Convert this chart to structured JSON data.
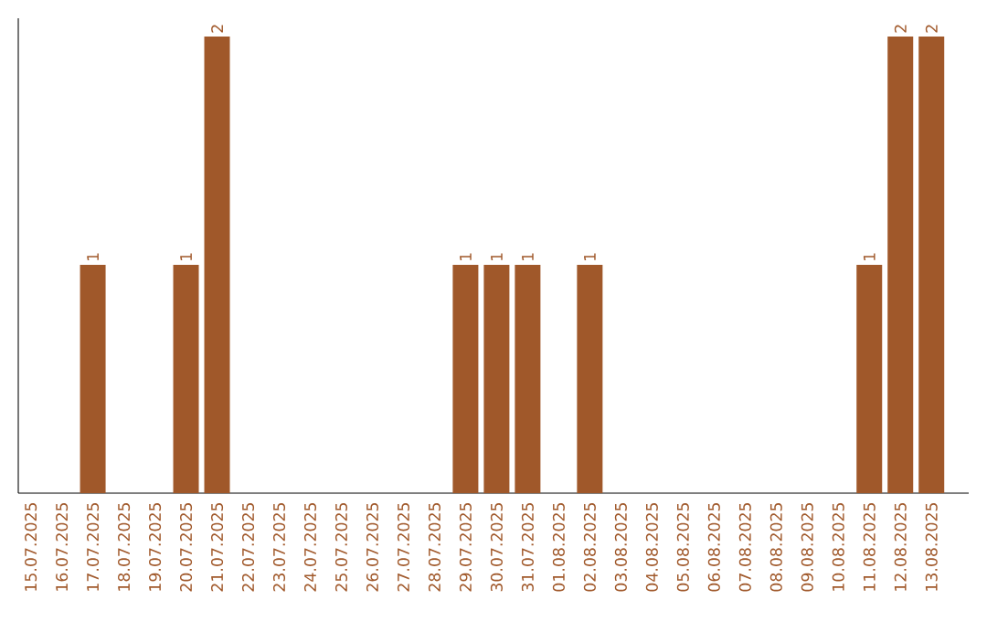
{
  "chart_data": {
    "type": "bar",
    "categories": [
      "15.07.2025",
      "16.07.2025",
      "17.07.2025",
      "18.07.2025",
      "19.07.2025",
      "20.07.2025",
      "21.07.2025",
      "22.07.2025",
      "23.07.2025",
      "24.07.2025",
      "25.07.2025",
      "26.07.2025",
      "27.07.2025",
      "28.07.2025",
      "29.07.2025",
      "30.07.2025",
      "31.07.2025",
      "01.08.2025",
      "02.08.2025",
      "03.08.2025",
      "04.08.2025",
      "05.08.2025",
      "06.08.2025",
      "07.08.2025",
      "08.08.2025",
      "09.08.2025",
      "10.08.2025",
      "11.08.2025",
      "12.08.2025",
      "13.08.2025"
    ],
    "values": [
      0,
      0,
      1,
      0,
      0,
      1,
      2,
      0,
      0,
      0,
      0,
      0,
      0,
      0,
      1,
      1,
      1,
      0,
      1,
      0,
      0,
      0,
      0,
      0,
      0,
      0,
      0,
      1,
      2,
      2
    ],
    "value_labels": [
      null,
      null,
      "1",
      null,
      null,
      "1",
      "2",
      null,
      null,
      null,
      null,
      null,
      null,
      null,
      "1",
      "1",
      "1",
      null,
      "1",
      null,
      null,
      null,
      null,
      null,
      null,
      null,
      null,
      "1",
      "2",
      "2"
    ],
    "color": "#a0582a",
    "ylim": [
      0,
      2.08
    ],
    "tick_labels": "x"
  }
}
